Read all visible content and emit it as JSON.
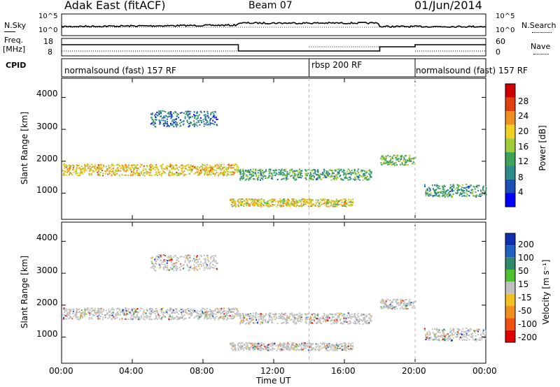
{
  "header": {
    "radar": "Adak East (fitACF)",
    "beam": "Beam 07",
    "date": "01/Jun/2014"
  },
  "top_panels": {
    "nsky_label": "N.Sky",
    "nsky_ticks": [
      "10^5",
      "10^0"
    ],
    "nsearch_label": "N.Search",
    "freq_label": "Freq.",
    "freq_unit": "[MHz]",
    "freq_ticks": [
      "18",
      "8"
    ],
    "nave_label": "Nave",
    "nave_ticks": [
      "60",
      "0"
    ],
    "cpid_label": "CPID",
    "cpid_segments": [
      {
        "label": "normalsound (fast) 157 RF",
        "start": "00:00",
        "end": "14:00"
      },
      {
        "label": "rbsp 200 RF",
        "start": "14:00",
        "end": "20:00"
      },
      {
        "label": "normalsound (fast) 157 RF",
        "start": "20:00",
        "end": "24:00"
      }
    ]
  },
  "colorbars": {
    "power": {
      "label": "Power [dB]",
      "ticks": [
        "4",
        "8",
        "12",
        "16",
        "20",
        "24",
        "28"
      ],
      "colors": [
        "#0000ff",
        "#1a4fb5",
        "#2f8a8a",
        "#3ea35a",
        "#9fcd3a",
        "#f0d020",
        "#f09020",
        "#e04010",
        "#d00000"
      ]
    },
    "velocity": {
      "label": "Velocity [m s⁻¹]",
      "ticks": [
        "200",
        "100",
        "50",
        "15",
        "-15",
        "-50",
        "-100",
        "-200"
      ],
      "colors": [
        "#1030b0",
        "#2060c0",
        "#2f8a6a",
        "#50c030",
        "#c0c0c0",
        "#f0c020",
        "#f09020",
        "#f05010",
        "#e00000"
      ]
    }
  },
  "chart_data": [
    {
      "type": "heatmap",
      "name": "power",
      "ylabel": "Slant Range [km]",
      "xlabel": "Time UT",
      "x_ticks": [
        "00:00",
        "04:00",
        "08:00",
        "12:00",
        "16:00",
        "20:00",
        "00:00"
      ],
      "y_ticks": [
        "1000",
        "2000",
        "3000",
        "4000"
      ],
      "xlim_hours": [
        0,
        24
      ],
      "ylim_km": [
        180,
        4600
      ],
      "echo_bands": [
        {
          "t0": 0,
          "t1": 10,
          "r_center": 1750,
          "width": 180,
          "level": 17
        },
        {
          "t0": 10,
          "t1": 17.5,
          "r_center": 1600,
          "width": 170,
          "level": 10
        },
        {
          "t0": 18,
          "t1": 20,
          "r_center": 2050,
          "width": 160,
          "level": 11
        },
        {
          "t0": 20.5,
          "t1": 24,
          "r_center": 1100,
          "width": 200,
          "level": 9
        },
        {
          "t0": 9.5,
          "t1": 16.5,
          "r_center": 720,
          "width": 120,
          "level": 16
        },
        {
          "t0": 5,
          "t1": 8.8,
          "r_center": 3350,
          "width": 250,
          "level": 6
        }
      ]
    },
    {
      "type": "heatmap",
      "name": "velocity",
      "ylabel": "Slant Range [km]",
      "xlabel": "Time UT",
      "x_ticks": [
        "00:00",
        "04:00",
        "08:00",
        "12:00",
        "16:00",
        "20:00",
        "00:00"
      ],
      "y_ticks": [
        "1000",
        "2000",
        "3000",
        "4000"
      ],
      "xlim_hours": [
        0,
        24
      ],
      "ylim_km": [
        180,
        4600
      ]
    }
  ]
}
